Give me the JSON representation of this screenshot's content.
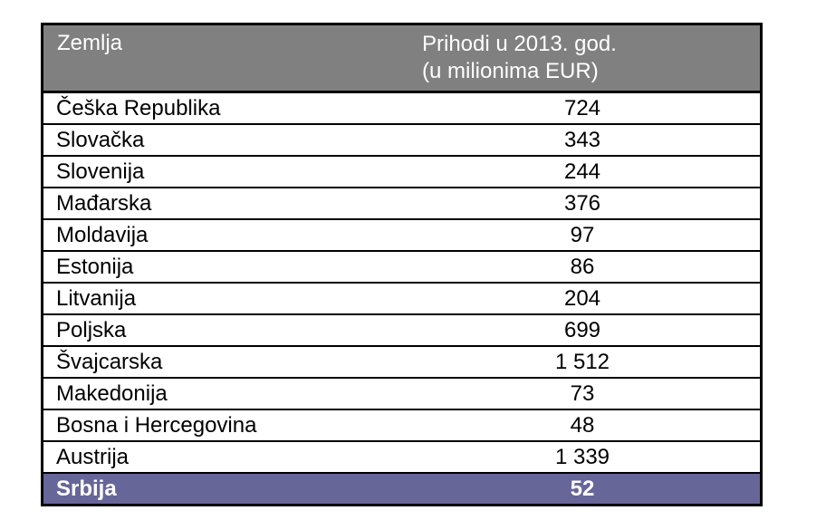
{
  "table": {
    "headers": [
      "Zemlja",
      "Prihodi u 2013. god.",
      "(u milionima EUR)"
    ],
    "rows": [
      {
        "country": "Češka Republika",
        "value": "724"
      },
      {
        "country": "Slovačka",
        "value": "343"
      },
      {
        "country": "Slovenija",
        "value": "244"
      },
      {
        "country": "Mađarska",
        "value": "376"
      },
      {
        "country": "Moldavija",
        "value": "97"
      },
      {
        "country": "Estonija",
        "value": "86"
      },
      {
        "country": "Litvanija",
        "value": "204"
      },
      {
        "country": "Poljska",
        "value": "699"
      },
      {
        "country": "Švajcarska",
        "value": "1 512"
      },
      {
        "country": "Makedonija",
        "value": "73"
      },
      {
        "country": "Bosna i Hercegovina",
        "value": "48"
      },
      {
        "country": "Austrija",
        "value": "1 339"
      },
      {
        "country": "Srbija",
        "value": "52"
      }
    ],
    "colors": {
      "header_bg": "#808080",
      "highlight_bg": "#666699"
    }
  }
}
